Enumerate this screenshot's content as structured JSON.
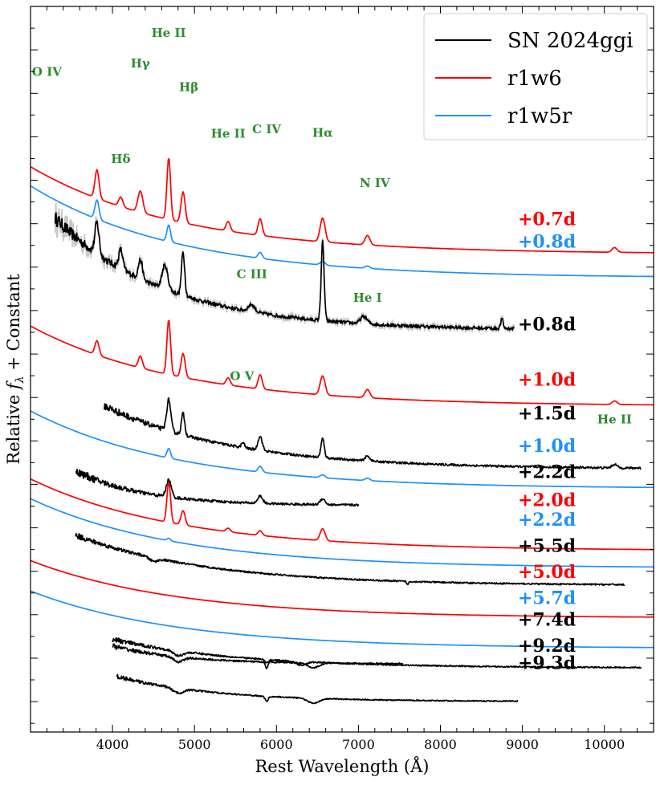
{
  "chart_data": {
    "type": "line",
    "title": "",
    "xlabel": "Rest Wavelength (Å)",
    "ylabel": "Relative f_λ + Constant",
    "ylabel_parts": {
      "main": "Relative ",
      "f": "f",
      "sub": "λ",
      "rest": " + Constant"
    },
    "xlim": [
      3000,
      10600
    ],
    "xticks": [
      4000,
      5000,
      6000,
      7000,
      8000,
      9000,
      10000
    ],
    "y_tick_labels_shown": false,
    "grid": false,
    "legend_position": "top-right",
    "colors": {
      "observed": "#000000",
      "r1w6": "#ff0000",
      "r1w5r": "#1e90ff",
      "line_ids": "#2e8b2e",
      "smoothed_raw": "#c8c8c8"
    },
    "legend": [
      {
        "label": "SN 2024ggi",
        "color": "#000000"
      },
      {
        "label": "r1w6",
        "color": "#ff0000"
      },
      {
        "label": "r1w5r",
        "color": "#1e90ff"
      }
    ],
    "series": [
      {
        "name": "r1w6",
        "epoch": "+0.7d",
        "color": "#ff0000",
        "x_start": 3000,
        "x_end": 10600,
        "offset": 0.0,
        "blue_flux": 4.2,
        "red_flux": 0.55,
        "features": [
          [
            3811,
            1.2,
            25
          ],
          [
            4101,
            0.4,
            25
          ],
          [
            4340,
            0.9,
            30
          ],
          [
            4686,
            2.6,
            22
          ],
          [
            4861,
            1.3,
            25
          ],
          [
            5411,
            0.4,
            25
          ],
          [
            5801,
            0.7,
            25
          ],
          [
            6563,
            1.0,
            30
          ],
          [
            7110,
            0.4,
            30
          ],
          [
            10124,
            0.2,
            30
          ]
        ]
      },
      {
        "name": "r1w5r",
        "epoch": "+0.8d",
        "color": "#1e90ff",
        "x_start": 3000,
        "x_end": 10600,
        "offset": -0.55,
        "blue_flux": 4.4,
        "red_flux": 0.55,
        "features": [
          [
            3811,
            0.8,
            25
          ],
          [
            4686,
            0.7,
            22
          ],
          [
            5801,
            0.25,
            25
          ],
          [
            6563,
            0.15,
            30
          ],
          [
            7110,
            0.1,
            30
          ]
        ]
      },
      {
        "name": "SN 2024ggi",
        "epoch": "+0.8d",
        "color": "#000000",
        "x_start": 3300,
        "x_end": 8900,
        "offset": -1.95,
        "blue_flux": 5.6,
        "red_flux": 0.9,
        "noise": 0.08,
        "features": [
          [
            3811,
            1.3,
            25
          ],
          [
            4101,
            0.8,
            25
          ],
          [
            4340,
            0.8,
            25
          ],
          [
            4640,
            1.0,
            35
          ],
          [
            4861,
            1.8,
            20
          ],
          [
            5696,
            0.3,
            40
          ],
          [
            6563,
            3.3,
            18
          ],
          [
            7065,
            0.3,
            40
          ],
          [
            8750,
            0.4,
            15
          ]
        ]
      },
      {
        "name": "r1w6",
        "epoch": "+1.0d",
        "color": "#ff0000",
        "x_start": 3000,
        "x_end": 10600,
        "offset": -3.5,
        "blue_flux": 3.9,
        "red_flux": 0.55,
        "features": [
          [
            3811,
            0.6,
            25
          ],
          [
            4340,
            0.5,
            25
          ],
          [
            4686,
            2.3,
            22
          ],
          [
            4861,
            1.0,
            25
          ],
          [
            5411,
            0.3,
            25
          ],
          [
            5801,
            0.6,
            25
          ],
          [
            6563,
            0.8,
            30
          ],
          [
            7110,
            0.35,
            30
          ],
          [
            10124,
            0.15,
            30
          ]
        ]
      },
      {
        "name": "SN 2024ggi",
        "epoch": "+1.5d",
        "color": "#000000",
        "x_start": 3900,
        "x_end": 10450,
        "offset": -4.95,
        "blue_flux": 3.2,
        "red_flux": 0.55,
        "noise": 0.05,
        "features": [
          [
            4686,
            1.3,
            25
          ],
          [
            4861,
            0.9,
            20
          ],
          [
            5592,
            0.2,
            20
          ],
          [
            5801,
            0.6,
            25
          ],
          [
            6563,
            0.8,
            20
          ],
          [
            7110,
            0.2,
            30
          ],
          [
            10124,
            0.15,
            30
          ]
        ]
      },
      {
        "name": "r1w5r",
        "epoch": "+1.0d",
        "color": "#1e90ff",
        "x_start": 3000,
        "x_end": 10600,
        "offset": -5.4,
        "blue_flux": 3.8,
        "red_flux": 0.55,
        "features": [
          [
            4686,
            0.4,
            22
          ],
          [
            5801,
            0.25,
            25
          ],
          [
            6563,
            0.12,
            30
          ],
          [
            7110,
            0.1,
            30
          ]
        ]
      },
      {
        "name": "SN 2024ggi",
        "epoch": "+2.2d",
        "color": "#000000",
        "x_start": 3550,
        "x_end": 7000,
        "offset": -5.9,
        "blue_flux": 2.2,
        "red_flux": 0.75,
        "noise": 0.05,
        "features": [
          [
            4686,
            0.7,
            30
          ],
          [
            5801,
            0.3,
            30
          ],
          [
            6563,
            0.25,
            30
          ]
        ]
      },
      {
        "name": "r1w6",
        "epoch": "+2.0d",
        "color": "#ff0000",
        "x_start": 3000,
        "x_end": 10600,
        "offset": -6.8,
        "blue_flux": 3.5,
        "red_flux": 0.5,
        "features": [
          [
            4686,
            1.7,
            22
          ],
          [
            4861,
            0.6,
            25
          ],
          [
            5411,
            0.15,
            25
          ],
          [
            5801,
            0.2,
            25
          ],
          [
            6563,
            0.5,
            30
          ]
        ]
      },
      {
        "name": "r1w5r",
        "epoch": "+2.2d",
        "color": "#1e90ff",
        "x_start": 3000,
        "x_end": 10600,
        "offset": -7.2,
        "blue_flux": 3.4,
        "red_flux": 0.5,
        "features": [
          [
            4686,
            0.1,
            22
          ]
        ]
      },
      {
        "name": "SN 2024ggi",
        "epoch": "+5.5d",
        "color": "#000000",
        "x_start": 3550,
        "x_end": 10250,
        "offset": -7.6,
        "blue_flux": 2.6,
        "red_flux": 0.5,
        "noise": 0.035,
        "features": [
          [
            4500,
            -0.15,
            50
          ],
          [
            7600,
            -0.15,
            10
          ]
        ]
      },
      {
        "name": "r1w6",
        "epoch": "+5.0d",
        "color": "#ff0000",
        "x_start": 3000,
        "x_end": 10600,
        "offset": -8.35,
        "blue_flux": 2.9,
        "red_flux": 0.5,
        "features": []
      },
      {
        "name": "r1w5r",
        "epoch": "+5.7d",
        "color": "#1e90ff",
        "x_start": 3000,
        "x_end": 10600,
        "offset": -9.05,
        "blue_flux": 2.9,
        "red_flux": 0.5,
        "features": []
      },
      {
        "name": "SN 2024ggi",
        "epoch": "+7.4d",
        "color": "#000000",
        "x_start": 4000,
        "x_end": 10450,
        "offset": -9.5,
        "blue_flux": 1.7,
        "red_flux": 0.5,
        "noise": 0.03,
        "features": [
          [
            4800,
            -0.2,
            60
          ],
          [
            5880,
            -0.15,
            20
          ],
          [
            6300,
            -0.15,
            60
          ]
        ]
      },
      {
        "name": "SN 2024ggi",
        "epoch": "+9.2d",
        "color": "#000000",
        "x_start": 4000,
        "x_end": 7550,
        "offset": -9.6,
        "blue_flux": 1.6,
        "red_flux": 0.85,
        "noise": 0.03,
        "features": [
          [
            4800,
            -0.2,
            60
          ],
          [
            5880,
            -0.25,
            15
          ],
          [
            6450,
            -0.2,
            70
          ]
        ]
      },
      {
        "name": "SN 2024ggi",
        "epoch": "+9.3d",
        "color": "#000000",
        "x_start": 4050,
        "x_end": 8950,
        "offset": -10.3,
        "blue_flux": 1.6,
        "red_flux": 0.55,
        "noise": 0.025,
        "features": [
          [
            4800,
            -0.2,
            60
          ],
          [
            5880,
            -0.2,
            20
          ],
          [
            6450,
            -0.2,
            70
          ]
        ]
      }
    ],
    "epoch_labels": [
      {
        "text": "+0.7d",
        "color": "#ff0000",
        "level": 0.97
      },
      {
        "text": "+0.8d",
        "color": "#1e90ff",
        "level": 0.45
      },
      {
        "text": "+0.8d",
        "color": "#000000",
        "level": -1.45
      },
      {
        "text": "+1.0d",
        "color": "#ff0000",
        "level": -2.73
      },
      {
        "text": "+1.5d",
        "color": "#000000",
        "level": -3.5
      },
      {
        "text": "+1.0d",
        "color": "#1e90ff",
        "level": -4.25
      },
      {
        "text": "+2.2d",
        "color": "#000000",
        "level": -4.85
      },
      {
        "text": "+2.0d",
        "color": "#ff0000",
        "level": -5.5
      },
      {
        "text": "+2.2d",
        "color": "#1e90ff",
        "level": -5.95
      },
      {
        "text": "+5.5d",
        "color": "#000000",
        "level": -6.55
      },
      {
        "text": "+5.0d",
        "color": "#ff0000",
        "level": -7.15
      },
      {
        "text": "+5.7d",
        "color": "#1e90ff",
        "level": -7.75
      },
      {
        "text": "+7.4d",
        "color": "#000000",
        "level": -8.25
      },
      {
        "text": "+9.2d",
        "color": "#000000",
        "level": -8.85
      },
      {
        "text": "+9.3d",
        "color": "#000000",
        "level": -9.25
      }
    ],
    "annotations": [
      {
        "text": "He II",
        "x": 4686,
        "level": 5.3
      },
      {
        "text": "O IV",
        "x": 3200,
        "level": 4.4
      },
      {
        "text": "Hγ",
        "x": 4340,
        "level": 4.6
      },
      {
        "text": "Hβ",
        "x": 4930,
        "level": 4.05
      },
      {
        "text": "He II",
        "x": 5411,
        "level": 2.98
      },
      {
        "text": "C IV",
        "x": 5880,
        "level": 3.08
      },
      {
        "text": "Hα",
        "x": 6563,
        "level": 3.0
      },
      {
        "text": "Hδ",
        "x": 4101,
        "level": 2.4
      },
      {
        "text": "N IV",
        "x": 7200,
        "level": 1.84
      },
      {
        "text": "C III",
        "x": 5700,
        "level": -0.25
      },
      {
        "text": "He I",
        "x": 7110,
        "level": -0.8
      },
      {
        "text": "O V",
        "x": 5580,
        "level": -2.6
      },
      {
        "text": "He II",
        "x": 10124,
        "level": -3.6
      }
    ]
  }
}
